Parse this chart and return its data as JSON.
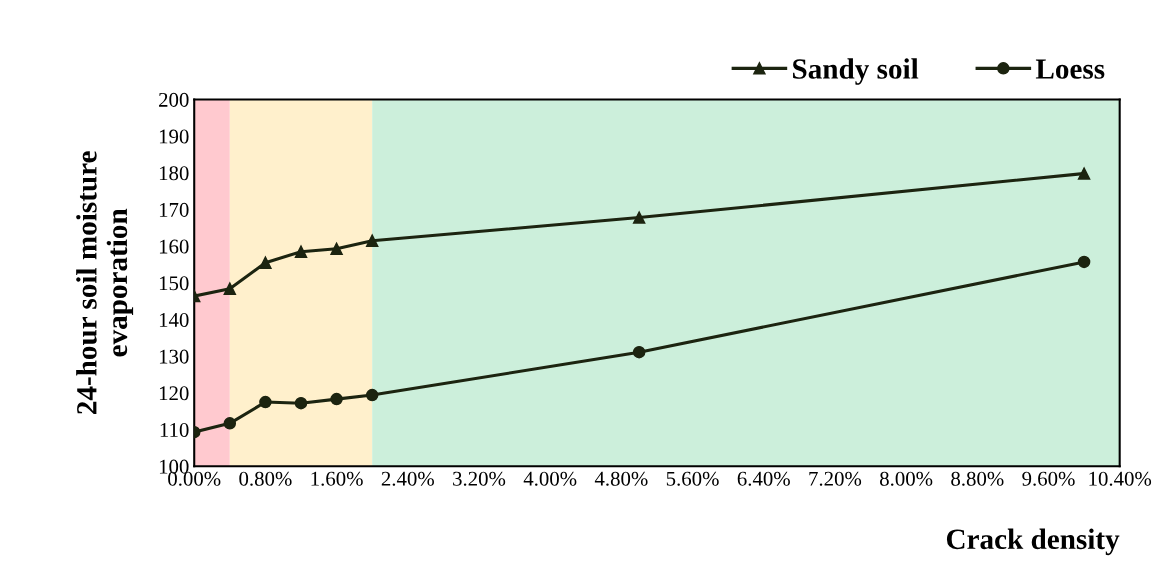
{
  "chart_data": {
    "type": "line",
    "xlabel": "Crack density",
    "ylabel": "24-hour soil moisture\nevaporation",
    "series": [
      {
        "name": "Sandy soil",
        "color": "#1c2410",
        "marker": "triangle",
        "x": [
          0,
          0.4,
          0.8,
          1.2,
          1.6,
          2.0,
          5.0,
          10.0
        ],
        "values": [
          146.4,
          148.4,
          155.5,
          158.5,
          159.3,
          161.5,
          167.8,
          179.8
        ]
      },
      {
        "name": "Loess",
        "color": "#1c2410",
        "marker": "circle",
        "x": [
          0,
          0.4,
          0.8,
          1.2,
          1.6,
          2.0,
          5.0,
          10.0
        ],
        "values": [
          109.3,
          111.7,
          117.5,
          117.2,
          118.3,
          119.4,
          131.1,
          155.7
        ]
      }
    ],
    "bands": [
      {
        "axis": "x",
        "from": 0,
        "to": 0.4,
        "color": "#ffc9cf"
      },
      {
        "axis": "x",
        "from": 0.4,
        "to": 2.0,
        "color": "#fff0cc"
      },
      {
        "axis": "x",
        "from": 2.0,
        "to": 10.4,
        "color": "#ccefdb"
      }
    ],
    "xlim": [
      0,
      10.4
    ],
    "xticks": [
      {
        "value": 0,
        "label": "0.00%"
      },
      {
        "value": 0.8,
        "label": "0.80%"
      },
      {
        "value": 1.6,
        "label": "1.60%"
      },
      {
        "value": 2.4,
        "label": "2.40%"
      },
      {
        "value": 3.2,
        "label": "3.20%"
      },
      {
        "value": 4.0,
        "label": "4.00%"
      },
      {
        "value": 4.8,
        "label": "4.80%"
      },
      {
        "value": 5.6,
        "label": "5.60%"
      },
      {
        "value": 6.4,
        "label": "6.40%"
      },
      {
        "value": 7.2,
        "label": "7.20%"
      },
      {
        "value": 8.0,
        "label": "8.00%"
      },
      {
        "value": 8.8,
        "label": "8.80%"
      },
      {
        "value": 9.6,
        "label": "9.60%"
      },
      {
        "value": 10.4,
        "label": "10.40%"
      }
    ],
    "ylim": [
      100,
      200
    ],
    "yticks": [
      100,
      110,
      120,
      130,
      140,
      150,
      160,
      170,
      180,
      190,
      200
    ],
    "grid": false,
    "legend": "top right",
    "line_style": "solid"
  }
}
